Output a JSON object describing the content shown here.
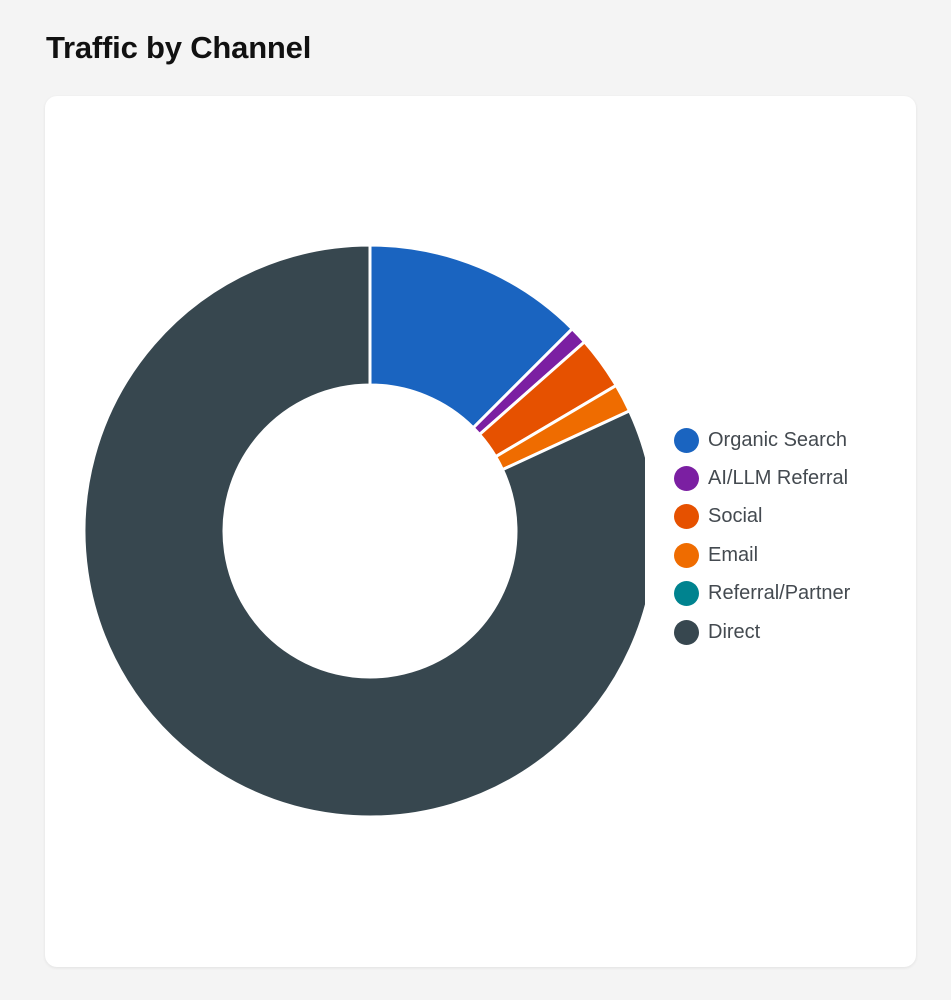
{
  "page": {
    "title": "Traffic by Channel"
  },
  "chart_data": {
    "type": "pie",
    "variant": "donut",
    "title": "Traffic by Channel",
    "unit": "percent of traffic (estimated)",
    "categories": [
      "Organic Search",
      "AI/LLM Referral",
      "Social",
      "Email",
      "Referral/Partner",
      "Direct"
    ],
    "values": [
      12.5,
      1.0,
      3.0,
      1.6,
      0.0,
      81.9
    ],
    "colors": [
      "#1a64c0",
      "#7b1fa2",
      "#e65100",
      "#ef6c00",
      "#00838f",
      "#37474f"
    ],
    "legend_position": "right",
    "legend": [
      {
        "label": "Organic Search",
        "color": "#1a64c0"
      },
      {
        "label": "AI/LLM Referral",
        "color": "#7b1fa2"
      },
      {
        "label": "Social",
        "color": "#e65100"
      },
      {
        "label": "Email",
        "color": "#ef6c00"
      },
      {
        "label": "Referral/Partner",
        "color": "#00838f"
      },
      {
        "label": "Direct",
        "color": "#37474f"
      }
    ]
  }
}
